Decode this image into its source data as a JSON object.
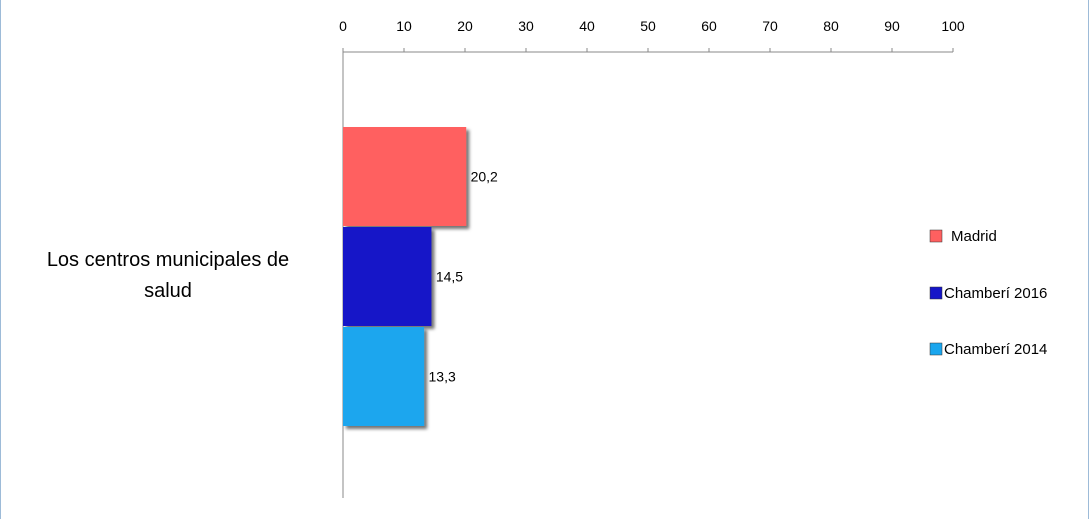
{
  "chart_data": {
    "type": "bar",
    "orientation": "horizontal",
    "categories": [
      "Los  centros municipales de salud"
    ],
    "series": [
      {
        "name": "Madrid",
        "values": [
          20.2
        ],
        "labels": [
          "20,2"
        ],
        "color": "#ff6060"
      },
      {
        "name": "Chamberí 2016",
        "values": [
          14.5
        ],
        "labels": [
          "14,5"
        ],
        "color": "#1515c8"
      },
      {
        "name": "Chamberí 2014",
        "values": [
          13.3
        ],
        "labels": [
          "13,3"
        ],
        "color": "#1aa6ee"
      }
    ],
    "x_ticks": [
      "0",
      "10",
      "20",
      "30",
      "40",
      "50",
      "60",
      "70",
      "80",
      "90",
      "100"
    ],
    "xlim": [
      0,
      100
    ],
    "x_axis_position": "top",
    "grid": false,
    "legend_position": "right",
    "title": "",
    "xlabel": "",
    "ylabel": ""
  }
}
